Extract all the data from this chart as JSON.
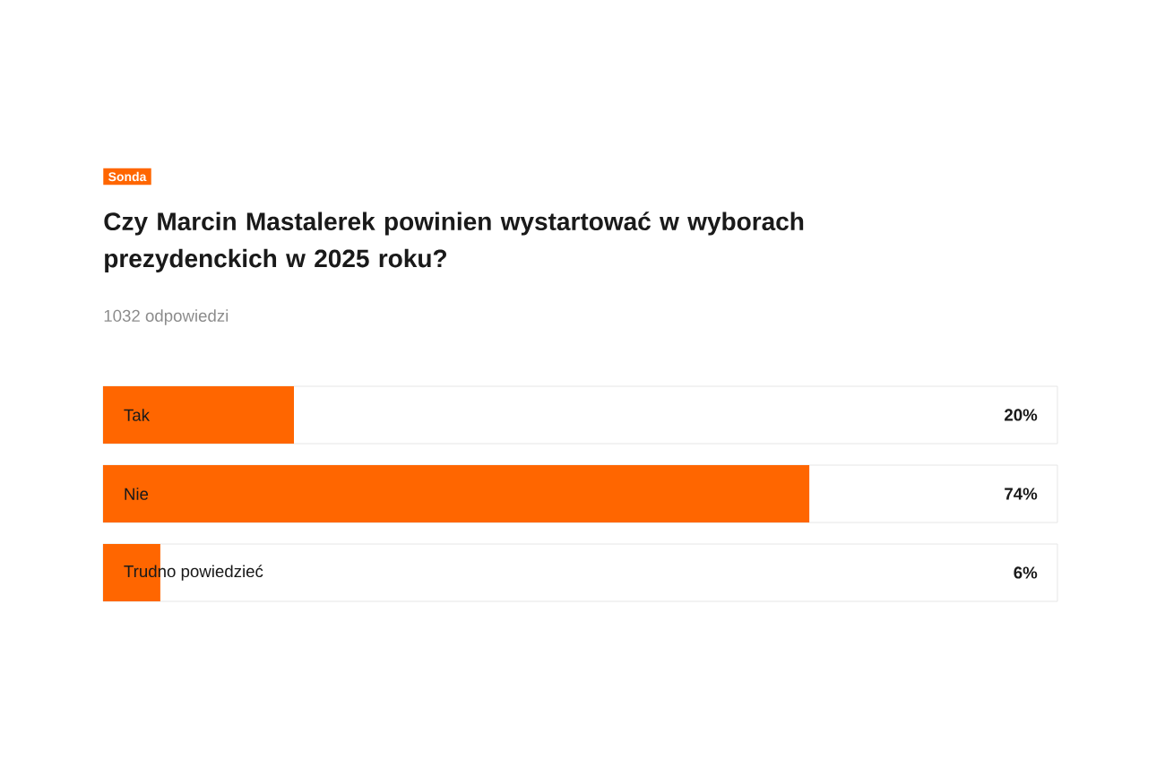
{
  "chart_data": {
    "type": "bar",
    "orientation": "horizontal",
    "title": "Czy Marcin Mastalerek powinien wystartować w wyborach prezydenckich w 2025 roku?",
    "subtitle": "1032 odpowiedzi",
    "annotations": [
      "Sonda"
    ],
    "categories": [
      "Tak",
      "Nie",
      "Trudno powiedzieć"
    ],
    "values": [
      20,
      74,
      6
    ],
    "value_labels": [
      "20%",
      "74%",
      "6%"
    ],
    "color": "#ff6600",
    "xlim": [
      0,
      100
    ]
  }
}
